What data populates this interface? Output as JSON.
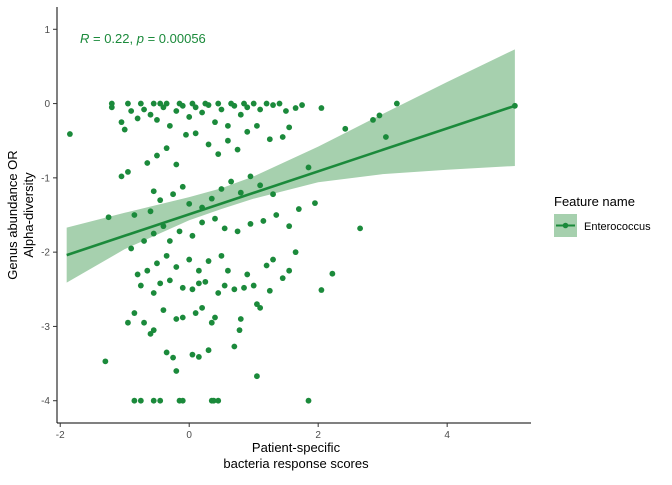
{
  "chart_data": {
    "type": "scatter",
    "xlabel": [
      "Patient-specific",
      "bacteria response scores"
    ],
    "ylabel": [
      "Genus abundance OR",
      "Alpha-diversity"
    ],
    "xlim": [
      -2.05,
      5.3
    ],
    "ylim": [
      -4.3,
      1.3
    ],
    "xticks": [
      -2,
      0,
      2,
      4
    ],
    "xtick_labels": [
      "-2",
      "0",
      "2",
      "4"
    ],
    "yticks": [
      1,
      0,
      -1,
      -2,
      -3,
      -4
    ],
    "ytick_labels": [
      "1",
      "0",
      "-1",
      "-2",
      "-3",
      "-4"
    ],
    "grid": false,
    "annotation": {
      "r_symbol": "R",
      "r_text": " = 0.22, ",
      "p_symbol": "p",
      "p_text": " = 0.00056"
    },
    "legend": {
      "title": "Feature name",
      "position": "right",
      "entries": [
        "Enterococcus"
      ]
    },
    "colors": {
      "points": "#1b8a3b",
      "ribbon": "#a6d0ae",
      "text": "#1b8a3b"
    },
    "series": [
      {
        "name": "Enterococcus",
        "fit_line": {
          "x": [
            -1.9,
            5.05
          ],
          "y": [
            -2.04,
            -0.03
          ]
        },
        "confidence_band": {
          "x": [
            -1.9,
            -1.0,
            0.0,
            0.5,
            1.0,
            2.0,
            3.0,
            4.0,
            5.05
          ],
          "upper": [
            -1.67,
            -1.47,
            -1.26,
            -1.14,
            -0.98,
            -0.58,
            -0.14,
            0.29,
            0.73
          ],
          "lower": [
            -2.41,
            -1.96,
            -1.57,
            -1.42,
            -1.28,
            -1.06,
            -0.95,
            -0.89,
            -0.84
          ]
        },
        "points": [
          [
            -1.85,
            -0.41
          ],
          [
            5.05,
            -0.03
          ],
          [
            3.22,
            0.0
          ],
          [
            2.85,
            -0.22
          ],
          [
            2.95,
            -0.16
          ],
          [
            3.05,
            -0.45
          ],
          [
            2.42,
            -0.34
          ],
          [
            2.05,
            -0.06
          ],
          [
            1.85,
            -0.86
          ],
          [
            1.95,
            -1.34
          ],
          [
            2.65,
            -1.68
          ],
          [
            2.22,
            -2.29
          ],
          [
            2.05,
            -2.51
          ],
          [
            1.85,
            -4.0
          ],
          [
            1.05,
            -3.67
          ],
          [
            -0.55,
            -4.0
          ],
          [
            -0.45,
            -4.0
          ],
          [
            -0.15,
            -4.0
          ],
          [
            -0.1,
            -4.0
          ],
          [
            0.35,
            -4.0
          ],
          [
            0.38,
            -4.0
          ],
          [
            0.45,
            -4.0
          ],
          [
            -0.85,
            -4.0
          ],
          [
            -0.75,
            -4.0
          ],
          [
            -1.3,
            -3.47
          ],
          [
            -0.55,
            -3.05
          ],
          [
            -0.35,
            -3.35
          ],
          [
            -0.25,
            -3.42
          ],
          [
            0.05,
            -3.38
          ],
          [
            0.15,
            -3.41
          ],
          [
            0.3,
            -3.32
          ],
          [
            -0.2,
            -3.6
          ],
          [
            0.7,
            -3.27
          ],
          [
            0.78,
            -3.05
          ],
          [
            -0.95,
            -2.95
          ],
          [
            -0.85,
            -2.82
          ],
          [
            -0.7,
            -2.95
          ],
          [
            -0.6,
            -3.1
          ],
          [
            -0.4,
            -2.78
          ],
          [
            -0.2,
            -2.9
          ],
          [
            -0.1,
            -2.88
          ],
          [
            0.1,
            -2.82
          ],
          [
            0.2,
            -2.75
          ],
          [
            0.4,
            -2.88
          ],
          [
            0.35,
            -2.95
          ],
          [
            0.8,
            -2.9
          ],
          [
            1.1,
            -2.75
          ],
          [
            1.05,
            -2.7
          ],
          [
            -0.75,
            -2.45
          ],
          [
            -0.55,
            -2.55
          ],
          [
            -0.45,
            -2.42
          ],
          [
            -0.3,
            -2.38
          ],
          [
            -0.1,
            -2.48
          ],
          [
            0.05,
            -2.5
          ],
          [
            0.15,
            -2.42
          ],
          [
            0.25,
            -2.4
          ],
          [
            0.45,
            -2.55
          ],
          [
            0.55,
            -2.45
          ],
          [
            0.7,
            -2.5
          ],
          [
            0.85,
            -2.48
          ],
          [
            1.0,
            -2.45
          ],
          [
            1.25,
            -2.52
          ],
          [
            1.45,
            -2.35
          ],
          [
            -0.8,
            -2.3
          ],
          [
            -0.65,
            -2.25
          ],
          [
            -0.5,
            -2.15
          ],
          [
            -0.35,
            -2.05
          ],
          [
            -0.2,
            -2.2
          ],
          [
            0.0,
            -2.1
          ],
          [
            0.15,
            -2.25
          ],
          [
            0.3,
            -2.12
          ],
          [
            0.5,
            -2.05
          ],
          [
            0.6,
            -2.25
          ],
          [
            0.9,
            -2.3
          ],
          [
            1.2,
            -2.18
          ],
          [
            1.3,
            -2.1
          ],
          [
            1.55,
            -2.25
          ],
          [
            1.65,
            -2.0
          ],
          [
            -0.9,
            -1.95
          ],
          [
            -0.7,
            -1.85
          ],
          [
            -0.55,
            -1.75
          ],
          [
            -0.4,
            -1.65
          ],
          [
            -0.3,
            -1.85
          ],
          [
            -0.15,
            -1.72
          ],
          [
            0.05,
            -1.78
          ],
          [
            0.2,
            -1.6
          ],
          [
            0.4,
            -1.55
          ],
          [
            0.55,
            -1.68
          ],
          [
            0.75,
            -1.72
          ],
          [
            0.95,
            -1.62
          ],
          [
            1.15,
            -1.58
          ],
          [
            1.35,
            -1.5
          ],
          [
            1.55,
            -1.65
          ],
          [
            1.7,
            -1.42
          ],
          [
            -1.25,
            -1.53
          ],
          [
            -0.85,
            -1.5
          ],
          [
            -0.6,
            -1.45
          ],
          [
            -0.45,
            -1.3
          ],
          [
            -0.25,
            -1.22
          ],
          [
            -0.1,
            -1.12
          ],
          [
            0.0,
            -1.35
          ],
          [
            0.2,
            -1.4
          ],
          [
            0.35,
            -1.28
          ],
          [
            0.5,
            -1.15
          ],
          [
            0.65,
            -1.05
          ],
          [
            0.8,
            -1.2
          ],
          [
            0.95,
            -0.98
          ],
          [
            1.1,
            -1.1
          ],
          [
            1.3,
            -1.22
          ],
          [
            -1.05,
            -0.98
          ],
          [
            -0.95,
            -0.92
          ],
          [
            -0.55,
            -1.18
          ],
          [
            -0.65,
            -0.8
          ],
          [
            -0.5,
            -0.7
          ],
          [
            -0.35,
            -0.6
          ],
          [
            -0.2,
            -0.82
          ],
          [
            -0.05,
            -0.42
          ],
          [
            0.1,
            -0.4
          ],
          [
            0.3,
            -0.55
          ],
          [
            0.45,
            -0.68
          ],
          [
            0.6,
            -0.5
          ],
          [
            0.75,
            -0.62
          ],
          [
            0.9,
            -0.38
          ],
          [
            1.05,
            -0.3
          ],
          [
            1.25,
            -0.48
          ],
          [
            1.45,
            -0.45
          ],
          [
            1.55,
            -0.32
          ],
          [
            -1.2,
            -0.05
          ],
          [
            -1.05,
            -0.25
          ],
          [
            -1.0,
            -0.35
          ],
          [
            -0.9,
            -0.1
          ],
          [
            -0.8,
            -0.2
          ],
          [
            -0.7,
            -0.08
          ],
          [
            -0.6,
            -0.15
          ],
          [
            -0.5,
            -0.22
          ],
          [
            -0.4,
            -0.05
          ],
          [
            -0.3,
            -0.3
          ],
          [
            -0.2,
            -0.1
          ],
          [
            -0.1,
            -0.03
          ],
          [
            0.0,
            -0.18
          ],
          [
            0.1,
            -0.05
          ],
          [
            0.2,
            -0.12
          ],
          [
            0.3,
            -0.02
          ],
          [
            0.4,
            -0.25
          ],
          [
            0.5,
            -0.08
          ],
          [
            0.6,
            -0.3
          ],
          [
            0.7,
            -0.03
          ],
          [
            0.8,
            -0.15
          ],
          [
            0.9,
            -0.05
          ],
          [
            1.1,
            -0.08
          ],
          [
            1.3,
            -0.02
          ],
          [
            1.5,
            -0.1
          ],
          [
            1.65,
            -0.06
          ],
          [
            1.75,
            -0.02
          ],
          [
            -0.75,
            0.0
          ],
          [
            -0.55,
            0.0
          ],
          [
            -0.35,
            0.0
          ],
          [
            -0.15,
            0.0
          ],
          [
            0.05,
            0.0
          ],
          [
            0.25,
            0.0
          ],
          [
            0.45,
            0.0
          ],
          [
            0.65,
            0.0
          ],
          [
            0.85,
            0.0
          ],
          [
            1.0,
            0.0
          ],
          [
            1.2,
            0.0
          ],
          [
            1.4,
            0.0
          ],
          [
            -1.2,
            0.0
          ],
          [
            -0.95,
            0.0
          ],
          [
            -0.45,
            0.0
          ]
        ]
      }
    ]
  }
}
